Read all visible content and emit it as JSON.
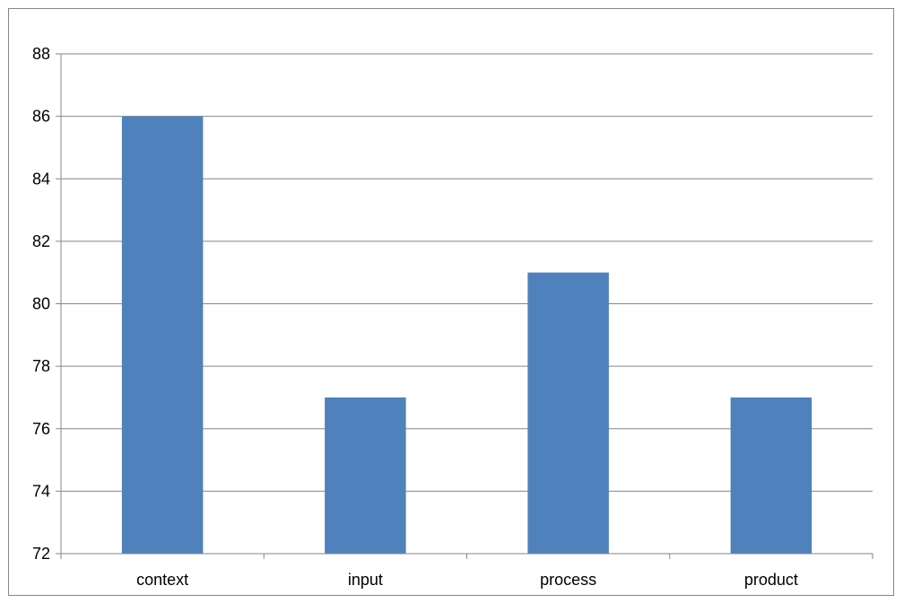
{
  "chart_data": {
    "type": "bar",
    "categories": [
      "context",
      "input",
      "process",
      "product"
    ],
    "series": [
      {
        "values": [
          86,
          77,
          81,
          77
        ]
      }
    ],
    "y_ticks": [
      "72",
      "74",
      "76",
      "78",
      "80",
      "82",
      "84",
      "86",
      "88"
    ],
    "ylim": [
      72,
      88
    ],
    "title": "",
    "xlabel": "",
    "ylabel": "",
    "grid": true,
    "legend": "none",
    "colors": {
      "bar": "#4F81BD",
      "grid": "#868686",
      "axis": "#868686"
    }
  }
}
